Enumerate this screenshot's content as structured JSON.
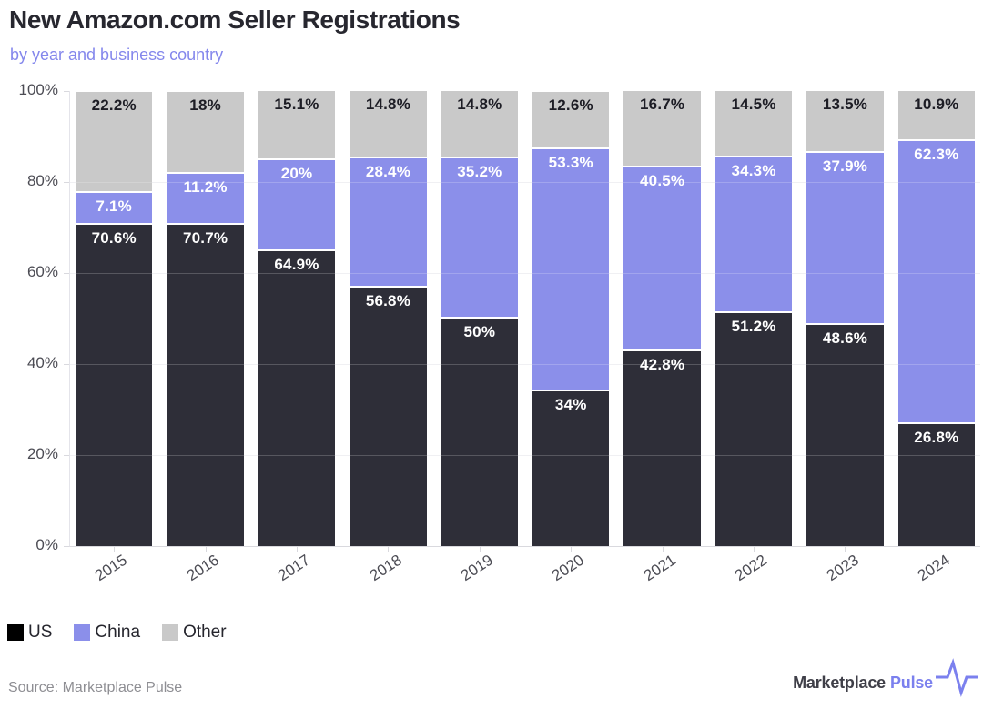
{
  "header": {
    "title": "New Amazon.com Seller Registrations",
    "subtitle": "by year and business country"
  },
  "chart_data": {
    "type": "bar",
    "stacked": true,
    "title": "New Amazon.com Seller Registrations",
    "subtitle": "by year and business country",
    "categories": [
      "2015",
      "2016",
      "2017",
      "2018",
      "2019",
      "2020",
      "2021",
      "2022",
      "2023",
      "2024"
    ],
    "series": [
      {
        "name": "US",
        "color": "#2e2e38",
        "legend_color": "#000000",
        "label_color": "#ffffff",
        "values": [
          70.6,
          70.7,
          64.9,
          56.8,
          50,
          34,
          42.8,
          51.2,
          48.6,
          26.8
        ],
        "labels": [
          "70.6%",
          "70.7%",
          "64.9%",
          "56.8%",
          "50%",
          "34%",
          "42.8%",
          "51.2%",
          "48.6%",
          "26.8%"
        ]
      },
      {
        "name": "China",
        "color": "#8b8fea",
        "legend_color": "#8b8fea",
        "label_color": "#ffffff",
        "values": [
          7.1,
          11.2,
          20,
          28.4,
          35.2,
          53.3,
          40.5,
          34.3,
          37.9,
          62.3
        ],
        "labels": [
          "7.1%",
          "11.2%",
          "20%",
          "28.4%",
          "35.2%",
          "53.3%",
          "40.5%",
          "34.3%",
          "37.9%",
          "62.3%"
        ]
      },
      {
        "name": "Other",
        "color": "#c9c9c9",
        "legend_color": "#c9c9c9",
        "label_color": "#1d1d25",
        "values": [
          22.2,
          18,
          15.1,
          14.8,
          14.8,
          12.6,
          16.7,
          14.5,
          13.5,
          10.9
        ],
        "labels": [
          "22.2%",
          "18%",
          "15.1%",
          "14.8%",
          "14.8%",
          "12.6%",
          "16.7%",
          "14.5%",
          "13.5%",
          "10.9%"
        ]
      }
    ],
    "y_ticks": [
      "0%",
      "20%",
      "40%",
      "60%",
      "80%",
      "100%"
    ],
    "ylim": [
      0,
      100
    ],
    "grid": "horizontal",
    "legend_position": "bottom-left"
  },
  "footer": {
    "source": "Source: Marketplace Pulse",
    "logo_text_dark": "Marketplace",
    "logo_text_accent": "Pulse",
    "logo_icon": "pulse-line-icon"
  },
  "colors": {
    "accent_purple": "#8b8fea",
    "subtitle_purple": "#8487ec",
    "us_bar": "#2e2e38",
    "china_bar": "#8b8fea",
    "other_bar": "#c9c9c9",
    "background": "#ffffff"
  }
}
